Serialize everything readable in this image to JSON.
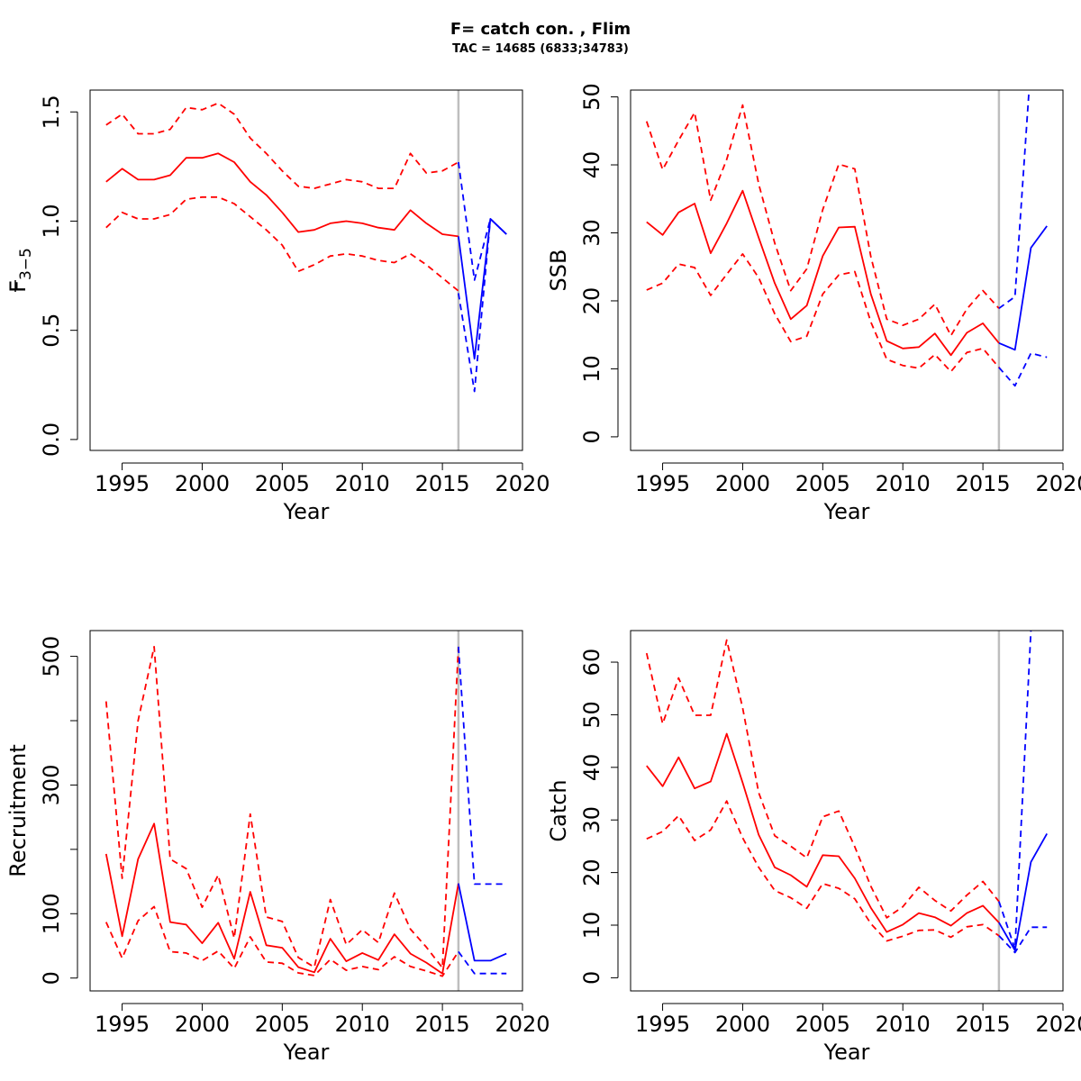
{
  "title": "F= catch con. , Flim",
  "subtitle": "TAC = 14685 (6833;34783)",
  "colors": {
    "historic": "#ff0000",
    "forecast": "#0000ff",
    "divider": "#bebebe"
  },
  "chart_data": [
    {
      "id": "fbar",
      "type": "line",
      "xlabel": "Year",
      "ylabel": "F",
      "ylabel_sub": "3−5",
      "xlim": [
        1993,
        2020
      ],
      "ylim": [
        -0.05,
        1.6
      ],
      "xticks": [
        1995,
        2000,
        2005,
        2010,
        2015,
        2020
      ],
      "yticks": [
        0.0,
        0.5,
        1.0,
        1.5
      ],
      "ytick_labels": [
        "0.0",
        "0.5",
        "1.0",
        "1.5"
      ],
      "vline": 2016,
      "historic_x": [
        1994,
        1995,
        1996,
        1997,
        1998,
        1999,
        2000,
        2001,
        2002,
        2003,
        2004,
        2005,
        2006,
        2007,
        2008,
        2009,
        2010,
        2011,
        2012,
        2013,
        2014,
        2015,
        2016
      ],
      "historic": [
        1.18,
        1.24,
        1.19,
        1.19,
        1.21,
        1.29,
        1.29,
        1.31,
        1.27,
        1.18,
        1.12,
        1.04,
        0.95,
        0.96,
        0.99,
        1.0,
        0.99,
        0.97,
        0.96,
        1.05,
        0.99,
        0.94,
        0.93
      ],
      "historic_low": [
        0.97,
        1.04,
        1.01,
        1.01,
        1.03,
        1.1,
        1.11,
        1.11,
        1.08,
        1.02,
        0.96,
        0.89,
        0.77,
        0.8,
        0.84,
        0.85,
        0.84,
        0.82,
        0.81,
        0.85,
        0.8,
        0.74,
        0.68
      ],
      "historic_high": [
        1.44,
        1.49,
        1.4,
        1.4,
        1.42,
        1.52,
        1.51,
        1.54,
        1.49,
        1.38,
        1.31,
        1.23,
        1.16,
        1.15,
        1.17,
        1.19,
        1.18,
        1.15,
        1.15,
        1.31,
        1.22,
        1.23,
        1.27
      ],
      "forecast_x": [
        2016,
        2017,
        2018,
        2019
      ],
      "forecast": [
        0.93,
        0.37,
        1.01,
        0.94
      ],
      "forecast_low": [
        0.67,
        0.22,
        1.01,
        0.94
      ],
      "forecast_high": [
        1.27,
        0.73,
        1.01,
        0.94
      ]
    },
    {
      "id": "ssb",
      "type": "line",
      "xlabel": "Year",
      "ylabel": "SSB",
      "xlim": [
        1993,
        2020
      ],
      "ylim": [
        -2,
        51
      ],
      "xticks": [
        1995,
        2000,
        2005,
        2010,
        2015,
        2020
      ],
      "yticks": [
        0,
        10,
        20,
        30,
        40,
        50
      ],
      "ytick_labels": [
        "0",
        "10",
        "20",
        "30",
        "40",
        "50"
      ],
      "vline": 2016,
      "historic_x": [
        1994,
        1995,
        1996,
        1997,
        1998,
        1999,
        2000,
        2001,
        2002,
        2003,
        2004,
        2005,
        2006,
        2007,
        2008,
        2009,
        2010,
        2011,
        2012,
        2013,
        2014,
        2015,
        2016
      ],
      "historic": [
        31.6,
        29.7,
        33.0,
        34.3,
        27.0,
        31.4,
        36.2,
        29.3,
        22.6,
        17.3,
        19.3,
        26.6,
        30.8,
        30.9,
        21.0,
        14.1,
        13.0,
        13.2,
        15.2,
        12.0,
        15.3,
        16.7,
        13.8
      ],
      "historic_low": [
        21.6,
        22.6,
        25.4,
        24.9,
        20.8,
        23.9,
        26.9,
        23.4,
        18.1,
        14.0,
        14.8,
        21.0,
        23.8,
        24.3,
        16.9,
        11.4,
        10.5,
        10.1,
        12.1,
        9.6,
        12.4,
        13.0,
        10.2
      ],
      "historic_high": [
        46.4,
        39.3,
        43.6,
        47.7,
        34.8,
        40.8,
        48.8,
        37.2,
        28.5,
        21.5,
        24.7,
        33.4,
        40.1,
        39.4,
        26.5,
        17.3,
        16.4,
        17.3,
        19.5,
        14.9,
        18.8,
        21.5,
        18.9
      ],
      "forecast_x": [
        2016,
        2017,
        2018,
        2019
      ],
      "forecast": [
        13.8,
        12.8,
        27.8,
        31.0
      ],
      "forecast_low": [
        10.2,
        7.5,
        12.3,
        11.7
      ],
      "forecast_high": [
        18.9,
        20.6,
        55.0,
        60.0
      ]
    },
    {
      "id": "recruitment",
      "type": "line",
      "xlabel": "Year",
      "ylabel": "Recruitment",
      "xlim": [
        1993,
        2020
      ],
      "ylim": [
        -20,
        540
      ],
      "xticks": [
        1995,
        2000,
        2005,
        2010,
        2015,
        2020
      ],
      "yticks": [
        0,
        100,
        200,
        300,
        400,
        500
      ],
      "ytick_labels": [
        "0",
        "100",
        "",
        "300",
        "",
        "500"
      ],
      "vline": 2016,
      "historic_x": [
        1994,
        1995,
        1996,
        1997,
        1998,
        1999,
        2000,
        2001,
        2002,
        2003,
        2004,
        2005,
        2006,
        2007,
        2008,
        2009,
        2010,
        2011,
        2012,
        2013,
        2014,
        2015,
        2016
      ],
      "historic": [
        193,
        65,
        185,
        240,
        87,
        83,
        54,
        86,
        30,
        134,
        51,
        47,
        17,
        9,
        61,
        26,
        39,
        28,
        68,
        38,
        24,
        7,
        147
      ],
      "historic_low": [
        87,
        31,
        89,
        111,
        41,
        39,
        27,
        42,
        15,
        64,
        25,
        23,
        8,
        4,
        29,
        12,
        18,
        13,
        33,
        18,
        11,
        3,
        41
      ],
      "historic_high": [
        430,
        155,
        400,
        515,
        185,
        170,
        110,
        160,
        62,
        255,
        95,
        88,
        32,
        17,
        122,
        52,
        75,
        55,
        132,
        76,
        48,
        16,
        515
      ],
      "forecast_x": [
        2016,
        2017,
        2018,
        2019
      ],
      "forecast": [
        147,
        27,
        27,
        38
      ],
      "forecast_low": [
        41,
        7,
        7,
        7
      ],
      "forecast_high": [
        515,
        146,
        146,
        146
      ]
    },
    {
      "id": "catch",
      "type": "line",
      "xlabel": "Year",
      "ylabel": "Catch",
      "xlim": [
        1993,
        2020
      ],
      "ylim": [
        -2.5,
        66
      ],
      "xticks": [
        1995,
        2000,
        2005,
        2010,
        2015,
        2020
      ],
      "yticks": [
        0,
        10,
        20,
        30,
        40,
        50,
        60
      ],
      "ytick_labels": [
        "0",
        "10",
        "20",
        "30",
        "40",
        "50",
        "60"
      ],
      "vline": 2016,
      "historic_x": [
        1994,
        1995,
        1996,
        1997,
        1998,
        1999,
        2000,
        2001,
        2002,
        2003,
        2004,
        2005,
        2006,
        2007,
        2008,
        2009,
        2010,
        2011,
        2012,
        2013,
        2014,
        2015,
        2016
      ],
      "historic": [
        40.3,
        36.4,
        41.9,
        36.0,
        37.3,
        46.4,
        37.1,
        27.2,
        21.0,
        19.5,
        17.3,
        23.3,
        23.1,
        18.9,
        13.3,
        8.7,
        10.1,
        12.3,
        11.5,
        9.9,
        12.3,
        13.7,
        10.5
      ],
      "historic_low": [
        26.4,
        27.8,
        30.8,
        26.1,
        28.1,
        33.6,
        26.6,
        21.0,
        16.6,
        15.2,
        13.2,
        17.9,
        17.0,
        15.0,
        10.3,
        7.0,
        7.9,
        9.0,
        9.1,
        7.7,
        9.7,
        10.1,
        8.0
      ],
      "historic_high": [
        61.7,
        48.3,
        57.0,
        49.9,
        49.9,
        64.2,
        51.3,
        35.2,
        27.0,
        25.0,
        22.8,
        30.6,
        31.7,
        24.9,
        17.4,
        11.4,
        13.5,
        17.2,
        14.7,
        12.7,
        15.7,
        18.3,
        14.5
      ],
      "forecast_x": [
        2016,
        2017,
        2018,
        2019
      ],
      "forecast": [
        10.5,
        5.2,
        22.0,
        27.4
      ],
      "forecast_low": [
        8.0,
        4.8,
        9.6,
        9.6
      ],
      "forecast_high": [
        14.5,
        5.5,
        66.0,
        70.0
      ]
    }
  ]
}
